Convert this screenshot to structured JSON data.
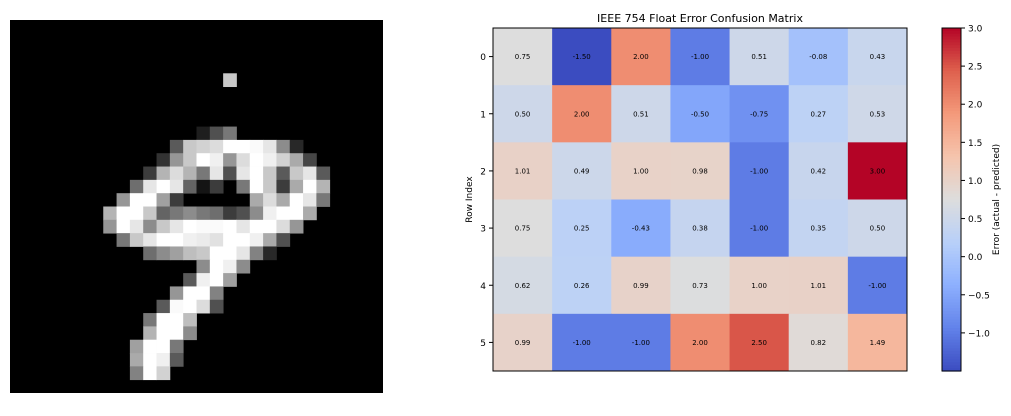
{
  "chart_data": [
    {
      "type": "image",
      "description_note": "",
      "pixel_grid_size": [
        28,
        28
      ],
      "digit_rows": {
        "4": {
          "16": 200
        },
        "8": {
          "14": 30,
          "15": 80,
          "16": 120
        },
        "9": {
          "12": 90,
          "13": 200,
          "14": 210,
          "15": 220,
          "16": 255,
          "17": 255,
          "18": 250,
          "19": 230,
          "20": 140,
          "21": 40
        },
        "10": {
          "11": 50,
          "12": 150,
          "13": 200,
          "14": 255,
          "15": 240,
          "16": 150,
          "17": 220,
          "18": 255,
          "19": 240,
          "20": 210,
          "21": 170,
          "22": 70
        },
        "11": {
          "10": 60,
          "11": 180,
          "12": 220,
          "13": 180,
          "14": 120,
          "15": 230,
          "16": 80,
          "17": 230,
          "18": 255,
          "19": 200,
          "20": 90,
          "21": 200,
          "22": 230,
          "23": 90
        },
        "12": {
          "9": 110,
          "10": 230,
          "11": 255,
          "12": 230,
          "13": 100,
          "14": 20,
          "15": 60,
          "17": 120,
          "18": 255,
          "19": 200,
          "20": 60,
          "21": 170,
          "22": 255,
          "23": 180
        },
        "13": {
          "8": 150,
          "9": 255,
          "10": 255,
          "11": 160,
          "12": 60,
          "18": 170,
          "19": 220,
          "20": 170,
          "21": 255,
          "22": 230,
          "23": 120
        },
        "14": {
          "7": 180,
          "8": 255,
          "9": 255,
          "10": 200,
          "11": 100,
          "12": 120,
          "13": 140,
          "14": 120,
          "15": 110,
          "16": 60,
          "17": 80,
          "18": 140,
          "19": 240,
          "20": 255,
          "21": 255,
          "22": 170
        },
        "15": {
          "7": 150,
          "8": 255,
          "9": 230,
          "10": 140,
          "11": 200,
          "12": 230,
          "13": 255,
          "14": 250,
          "15": 250,
          "16": 255,
          "17": 230,
          "18": 255,
          "19": 255,
          "20": 220,
          "21": 150
        },
        "16": {
          "8": 120,
          "9": 200,
          "10": 230,
          "11": 255,
          "12": 255,
          "13": 240,
          "14": 235,
          "15": 225,
          "16": 255,
          "17": 255,
          "18": 240,
          "19": 170,
          "20": 80
        },
        "17": {
          "10": 110,
          "11": 140,
          "12": 160,
          "13": 190,
          "14": 200,
          "15": 255,
          "16": 255,
          "17": 230,
          "18": 130,
          "19": 40
        },
        "18": {
          "14": 140,
          "15": 255,
          "16": 240,
          "17": 140
        },
        "19": {
          "13": 90,
          "14": 240,
          "15": 255,
          "16": 160
        },
        "20": {
          "12": 150,
          "13": 255,
          "14": 255,
          "15": 130
        },
        "21": {
          "11": 90,
          "12": 250,
          "13": 255,
          "14": 220,
          "15": 80
        },
        "22": {
          "10": 120,
          "11": 255,
          "12": 255,
          "13": 190
        },
        "23": {
          "10": 180,
          "11": 255,
          "12": 255,
          "13": 140
        },
        "24": {
          "9": 160,
          "10": 255,
          "11": 255,
          "12": 120
        },
        "25": {
          "9": 170,
          "10": 255,
          "11": 240,
          "12": 90
        },
        "26": {
          "9": 130,
          "10": 255,
          "11": 210
        }
      }
    },
    {
      "type": "heatmap",
      "title": "IEEE 754 Float Error Confusion Matrix",
      "xlabel": "",
      "ylabel": "Row Index",
      "row_labels": [
        "0",
        "1",
        "2",
        "3",
        "4",
        "5"
      ],
      "values": [
        [
          0.75,
          -1.5,
          2.0,
          -1.0,
          0.51,
          -0.08,
          0.43
        ],
        [
          0.5,
          2.0,
          0.51,
          -0.5,
          -0.75,
          0.27,
          0.53
        ],
        [
          1.01,
          0.49,
          1.0,
          0.98,
          -1.0,
          0.42,
          3.0
        ],
        [
          0.75,
          0.25,
          -0.43,
          0.38,
          -1.0,
          0.35,
          0.5
        ],
        [
          0.62,
          0.26,
          0.99,
          0.73,
          1.0,
          1.01,
          -1.0
        ],
        [
          0.99,
          -1.0,
          -1.0,
          2.0,
          2.5,
          0.82,
          1.49
        ]
      ],
      "colormap": "coolwarm",
      "vmin": -1.5,
      "vmax": 3.0,
      "x_ticks_visible": false,
      "colorbar": {
        "label": "Error (actual - predicted)",
        "ticks": [
          -1.0,
          -0.5,
          0.0,
          0.5,
          1.0,
          1.5,
          2.0,
          2.5,
          3.0
        ],
        "tick_labels": [
          "−1.0",
          "−0.5",
          "0.0",
          "0.5",
          "1.0",
          "1.5",
          "2.0",
          "2.5",
          "3.0"
        ]
      }
    }
  ]
}
